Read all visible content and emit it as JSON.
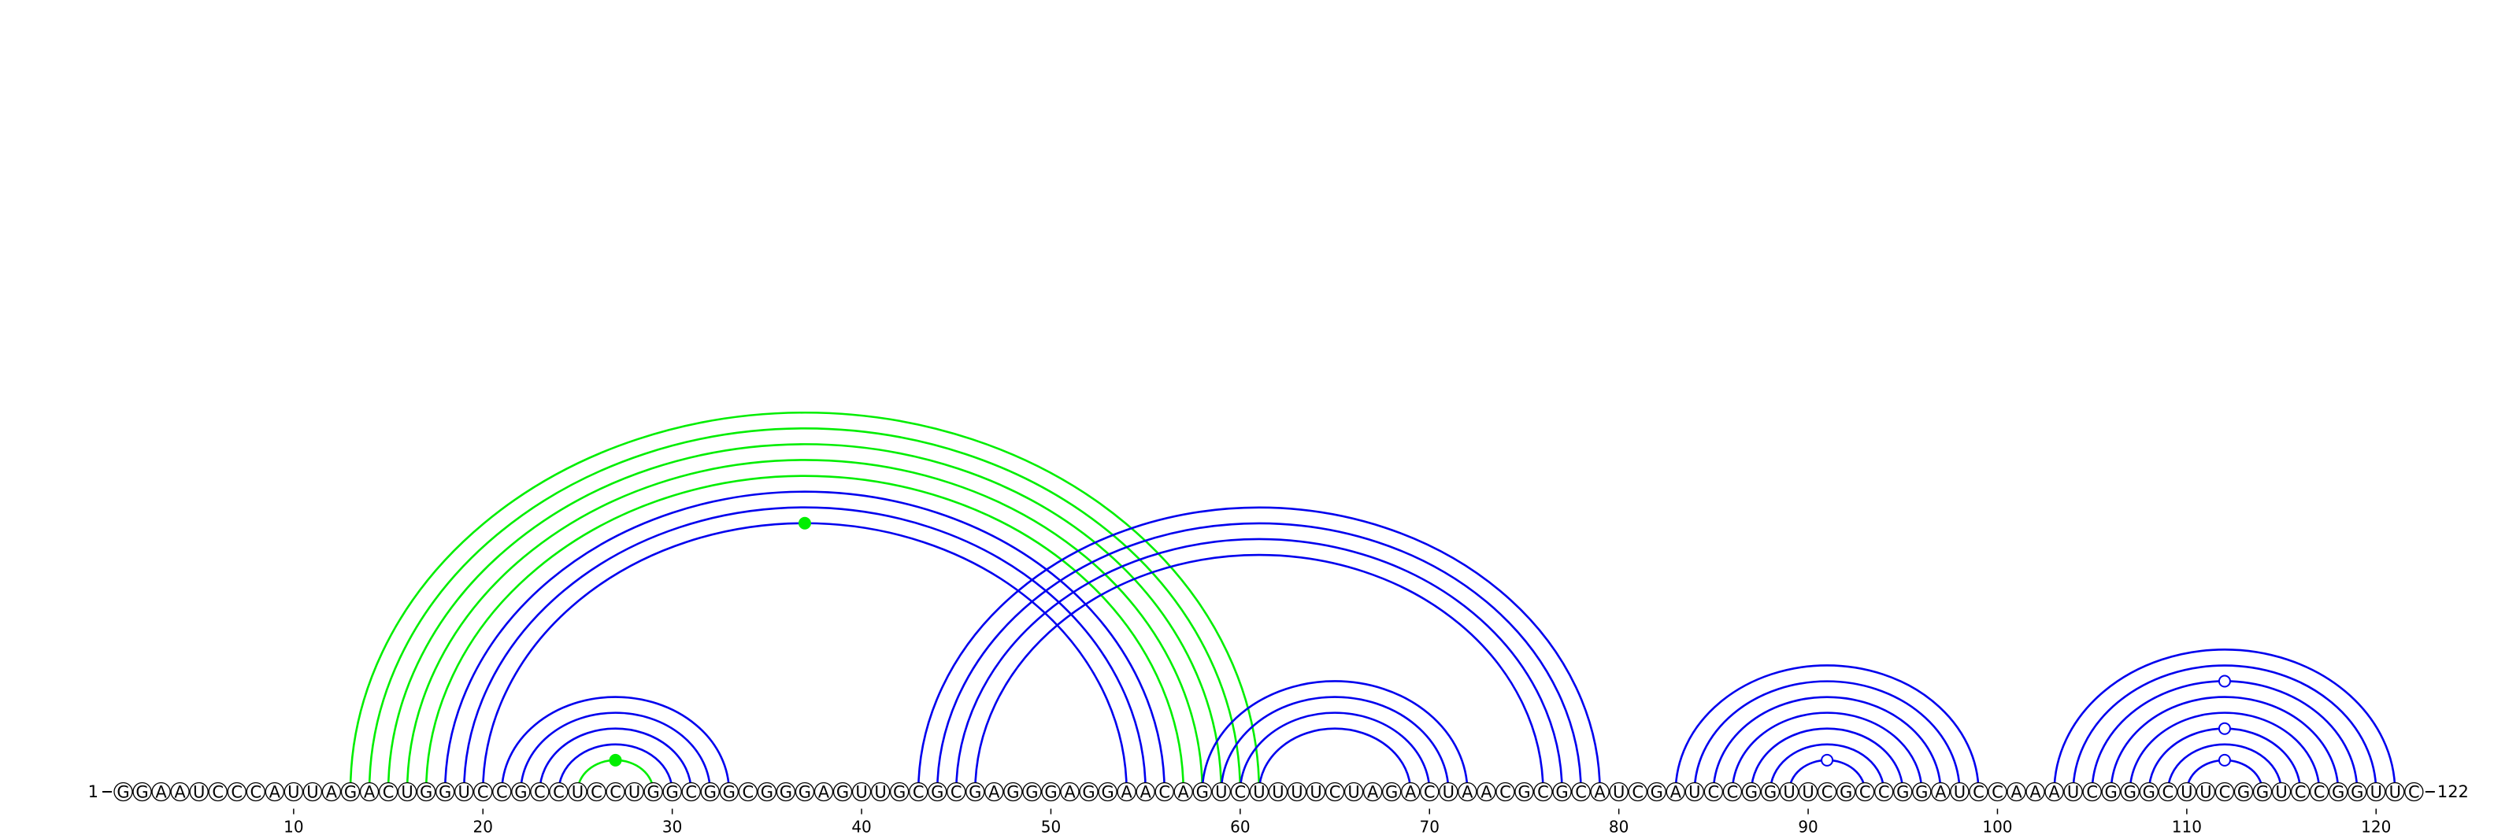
{
  "sequence": "GGAAUCCCAUUAGACUGGUCCGCCUCCUGGCGGCGGGAGUUGCGCGAGGGAGGAACAGUCUUUUCUAGACUAACGCGCAUCGAUCCGGUUCGCCGGAUCCAAAUCGGGCUUCGGUCCGGUUC",
  "length": 122,
  "start_label": "1",
  "end_label": "122",
  "ticks": [
    10,
    20,
    30,
    40,
    50,
    60,
    70,
    80,
    90,
    100,
    110,
    120
  ],
  "colors": {
    "blue": "#0000ee",
    "green": "#00ee00",
    "circle_fill": "#ffffff",
    "circle_stroke": "#000000"
  },
  "arcs": [
    {
      "i": 13,
      "j": 61,
      "color": "green"
    },
    {
      "i": 14,
      "j": 60,
      "color": "green"
    },
    {
      "i": 15,
      "j": 59,
      "color": "green"
    },
    {
      "i": 16,
      "j": 58,
      "color": "green"
    },
    {
      "i": 17,
      "j": 57,
      "color": "green"
    },
    {
      "i": 18,
      "j": 56,
      "color": "blue"
    },
    {
      "i": 19,
      "j": 55,
      "color": "blue"
    },
    {
      "i": 20,
      "j": 54,
      "color": "blue"
    },
    {
      "i": 21,
      "j": 33,
      "color": "blue"
    },
    {
      "i": 22,
      "j": 32,
      "color": "blue"
    },
    {
      "i": 23,
      "j": 31,
      "color": "blue"
    },
    {
      "i": 24,
      "j": 30,
      "color": "blue"
    },
    {
      "i": 25,
      "j": 29,
      "color": "green"
    },
    {
      "i": 43,
      "j": 79,
      "color": "blue"
    },
    {
      "i": 44,
      "j": 78,
      "color": "blue"
    },
    {
      "i": 45,
      "j": 77,
      "color": "blue"
    },
    {
      "i": 46,
      "j": 76,
      "color": "blue"
    },
    {
      "i": 58,
      "j": 72,
      "color": "blue"
    },
    {
      "i": 59,
      "j": 71,
      "color": "blue"
    },
    {
      "i": 60,
      "j": 70,
      "color": "blue"
    },
    {
      "i": 61,
      "j": 69,
      "color": "blue"
    },
    {
      "i": 83,
      "j": 99,
      "color": "blue"
    },
    {
      "i": 84,
      "j": 98,
      "color": "blue"
    },
    {
      "i": 85,
      "j": 97,
      "color": "blue"
    },
    {
      "i": 86,
      "j": 96,
      "color": "blue"
    },
    {
      "i": 87,
      "j": 95,
      "color": "blue"
    },
    {
      "i": 88,
      "j": 94,
      "color": "blue"
    },
    {
      "i": 89,
      "j": 93,
      "color": "blue"
    },
    {
      "i": 103,
      "j": 121,
      "color": "blue"
    },
    {
      "i": 104,
      "j": 120,
      "color": "blue"
    },
    {
      "i": 105,
      "j": 119,
      "color": "blue"
    },
    {
      "i": 106,
      "j": 118,
      "color": "blue"
    },
    {
      "i": 107,
      "j": 117,
      "color": "blue"
    },
    {
      "i": 108,
      "j": 116,
      "color": "blue"
    },
    {
      "i": 109,
      "j": 115,
      "color": "blue"
    },
    {
      "i": 110,
      "j": 114,
      "color": "blue"
    }
  ],
  "markers": [
    {
      "at": 37,
      "color": "green",
      "filled": true
    },
    {
      "at": 27,
      "color": "green",
      "filled": true
    },
    {
      "at": 91,
      "color": "blue",
      "filled": false
    },
    {
      "at": 112,
      "color": "blue",
      "filled": false
    }
  ]
}
